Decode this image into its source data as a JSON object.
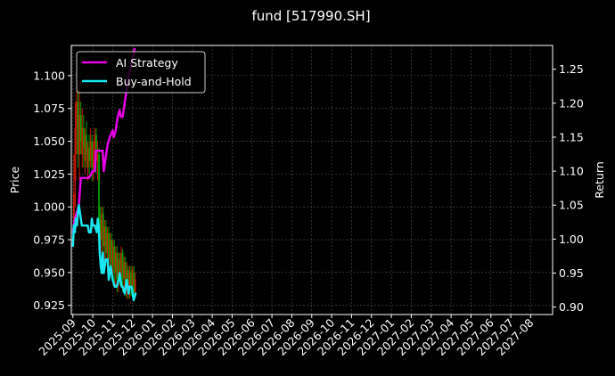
{
  "chart_data": {
    "type": "line",
    "title": "fund [517990.SH]",
    "ylabel_left": "Price",
    "ylabel_right": "Return",
    "xlabel": "",
    "grid": true,
    "legend_position": "top-left",
    "x_ticks": [
      "2025-09",
      "2025-10",
      "2025-11",
      "2025-12",
      "2026-01",
      "2026-02",
      "2026-03",
      "2026-04",
      "2026-05",
      "2026-06",
      "2026-07",
      "2026-08",
      "2026-09",
      "2026-10",
      "2026-11",
      "2026-12",
      "2027-01",
      "2027-02",
      "2027-03",
      "2027-04",
      "2027-05",
      "2027-06",
      "2027-07",
      "2027-08"
    ],
    "x_range_months": [
      -0.08,
      24.1
    ],
    "y_left_ticks": [
      "0.925",
      "0.950",
      "0.975",
      "1.000",
      "1.025",
      "1.050",
      "1.075",
      "1.100"
    ],
    "y_left_range": [
      0.918,
      1.123
    ],
    "y_right_ticks": [
      "0.90",
      "0.95",
      "1.00",
      "1.05",
      "1.10",
      "1.15",
      "1.20",
      "1.25"
    ],
    "y_right_range": [
      0.889,
      1.285
    ],
    "colors": {
      "background": "#000000",
      "ai_strategy": "#e600e6",
      "buy_and_hold": "#19e6f0",
      "candle_up": "#cc1a00",
      "candle_down": "#00a000",
      "grid": "#555555",
      "axis": "#ffffff"
    },
    "series": [
      {
        "name": "AI Strategy",
        "axis": "right",
        "color": "#e600e6",
        "points": [
          [
            0.0,
            1.01
          ],
          [
            0.1,
            1.03
          ],
          [
            0.2,
            1.04
          ],
          [
            0.3,
            1.05
          ],
          [
            0.4,
            1.09
          ],
          [
            0.6,
            1.09
          ],
          [
            0.8,
            1.09
          ],
          [
            1.0,
            1.1
          ],
          [
            1.1,
            1.1
          ],
          [
            1.15,
            1.13
          ],
          [
            1.3,
            1.13
          ],
          [
            1.5,
            1.13
          ],
          [
            1.55,
            1.1
          ],
          [
            1.65,
            1.12
          ],
          [
            1.75,
            1.14
          ],
          [
            1.85,
            1.15
          ],
          [
            2.0,
            1.16
          ],
          [
            2.05,
            1.15
          ],
          [
            2.15,
            1.16
          ],
          [
            2.25,
            1.18
          ],
          [
            2.35,
            1.19
          ],
          [
            2.4,
            1.18
          ],
          [
            2.5,
            1.18
          ],
          [
            2.6,
            1.2
          ],
          [
            2.7,
            1.22
          ],
          [
            2.8,
            1.24
          ],
          [
            2.95,
            1.26
          ],
          [
            3.1,
            1.28
          ]
        ]
      },
      {
        "name": "Buy-and-Hold",
        "axis": "right",
        "color": "#19e6f0",
        "points": [
          [
            0.0,
            0.99
          ],
          [
            0.05,
            1.02
          ],
          [
            0.1,
            1.01
          ],
          [
            0.15,
            1.03
          ],
          [
            0.2,
            1.02
          ],
          [
            0.25,
            1.04
          ],
          [
            0.3,
            1.05
          ],
          [
            0.35,
            1.04
          ],
          [
            0.4,
            1.03
          ],
          [
            0.45,
            1.02
          ],
          [
            0.55,
            1.02
          ],
          [
            0.65,
            1.02
          ],
          [
            0.75,
            1.02
          ],
          [
            0.8,
            1.01
          ],
          [
            0.9,
            1.01
          ],
          [
            0.95,
            1.03
          ],
          [
            1.0,
            1.02
          ],
          [
            1.1,
            1.02
          ],
          [
            1.2,
            1.01
          ],
          [
            1.25,
            1.03
          ],
          [
            1.3,
            1.02
          ],
          [
            1.35,
            0.98
          ],
          [
            1.4,
            0.96
          ],
          [
            1.45,
            0.95
          ],
          [
            1.5,
            0.98
          ],
          [
            1.55,
            0.95
          ],
          [
            1.6,
            0.96
          ],
          [
            1.65,
            0.97
          ],
          [
            1.75,
            0.97
          ],
          [
            1.8,
            0.94
          ],
          [
            1.85,
            0.95
          ],
          [
            1.9,
            0.96
          ],
          [
            1.95,
            0.95
          ],
          [
            2.0,
            0.94
          ],
          [
            2.1,
            0.93
          ],
          [
            2.2,
            0.93
          ],
          [
            2.3,
            0.94
          ],
          [
            2.35,
            0.95
          ],
          [
            2.45,
            0.93
          ],
          [
            2.5,
            0.93
          ],
          [
            2.6,
            0.92
          ],
          [
            2.7,
            0.94
          ],
          [
            2.8,
            0.92
          ],
          [
            2.85,
            0.93
          ],
          [
            2.95,
            0.93
          ],
          [
            3.05,
            0.91
          ],
          [
            3.15,
            0.92
          ]
        ]
      }
    ],
    "candles": {
      "axis": "left",
      "items": [
        {
          "x": 0.05,
          "open": 0.985,
          "close": 1.01,
          "low": 0.975,
          "high": 1.04
        },
        {
          "x": 0.12,
          "open": 1.02,
          "close": 1.06,
          "low": 1.0,
          "high": 1.08
        },
        {
          "x": 0.19,
          "open": 1.06,
          "close": 1.08,
          "low": 1.04,
          "high": 1.095
        },
        {
          "x": 0.26,
          "open": 1.08,
          "close": 1.04,
          "low": 1.03,
          "high": 1.09
        },
        {
          "x": 0.33,
          "open": 1.04,
          "close": 1.07,
          "low": 1.02,
          "high": 1.095
        },
        {
          "x": 0.4,
          "open": 1.07,
          "close": 1.05,
          "low": 1.04,
          "high": 1.08
        },
        {
          "x": 0.47,
          "open": 1.04,
          "close": 1.06,
          "low": 1.03,
          "high": 1.075
        },
        {
          "x": 0.54,
          "open": 1.06,
          "close": 1.045,
          "low": 1.03,
          "high": 1.07
        },
        {
          "x": 0.61,
          "open": 1.035,
          "close": 1.055,
          "low": 1.025,
          "high": 1.06
        },
        {
          "x": 0.68,
          "open": 1.055,
          "close": 1.04,
          "low": 1.03,
          "high": 1.065
        },
        {
          "x": 0.75,
          "open": 1.03,
          "close": 1.045,
          "low": 1.02,
          "high": 1.05
        },
        {
          "x": 0.82,
          "open": 1.045,
          "close": 1.035,
          "low": 1.025,
          "high": 1.055
        },
        {
          "x": 0.89,
          "open": 1.035,
          "close": 1.05,
          "low": 1.03,
          "high": 1.06
        },
        {
          "x": 0.96,
          "open": 1.05,
          "close": 1.03,
          "low": 1.02,
          "high": 1.055
        },
        {
          "x": 1.03,
          "open": 1.03,
          "close": 1.045,
          "low": 1.02,
          "high": 1.05
        },
        {
          "x": 1.1,
          "open": 1.045,
          "close": 1.055,
          "low": 1.035,
          "high": 1.06
        },
        {
          "x": 1.17,
          "open": 1.055,
          "close": 1.035,
          "low": 1.025,
          "high": 1.06
        },
        {
          "x": 1.24,
          "open": 1.035,
          "close": 1.04,
          "low": 1.02,
          "high": 1.05
        },
        {
          "x": 1.31,
          "open": 1.04,
          "close": 0.99,
          "low": 0.98,
          "high": 1.045
        },
        {
          "x": 1.38,
          "open": 0.99,
          "close": 0.975,
          "low": 0.965,
          "high": 1.0
        },
        {
          "x": 1.45,
          "open": 0.975,
          "close": 0.995,
          "low": 0.965,
          "high": 1.0
        },
        {
          "x": 1.52,
          "open": 0.995,
          "close": 0.97,
          "low": 0.96,
          "high": 1.0
        },
        {
          "x": 1.59,
          "open": 0.97,
          "close": 0.985,
          "low": 0.96,
          "high": 0.99
        },
        {
          "x": 1.66,
          "open": 0.985,
          "close": 0.965,
          "low": 0.955,
          "high": 0.99
        },
        {
          "x": 1.73,
          "open": 0.965,
          "close": 0.98,
          "low": 0.95,
          "high": 0.985
        },
        {
          "x": 1.8,
          "open": 0.98,
          "close": 0.96,
          "low": 0.945,
          "high": 0.985
        },
        {
          "x": 1.87,
          "open": 0.96,
          "close": 0.975,
          "low": 0.95,
          "high": 0.98
        },
        {
          "x": 1.94,
          "open": 0.975,
          "close": 0.955,
          "low": 0.945,
          "high": 0.98
        },
        {
          "x": 2.01,
          "open": 0.955,
          "close": 0.97,
          "low": 0.945,
          "high": 0.975
        },
        {
          "x": 2.08,
          "open": 0.97,
          "close": 0.95,
          "low": 0.94,
          "high": 0.975
        },
        {
          "x": 2.15,
          "open": 0.95,
          "close": 0.965,
          "low": 0.94,
          "high": 0.97
        },
        {
          "x": 2.22,
          "open": 0.965,
          "close": 0.945,
          "low": 0.935,
          "high": 0.97
        },
        {
          "x": 2.29,
          "open": 0.945,
          "close": 0.96,
          "low": 0.935,
          "high": 0.965
        },
        {
          "x": 2.36,
          "open": 0.96,
          "close": 0.95,
          "low": 0.94,
          "high": 0.965
        },
        {
          "x": 2.43,
          "open": 0.95,
          "close": 0.965,
          "low": 0.94,
          "high": 0.97
        },
        {
          "x": 2.5,
          "open": 0.965,
          "close": 0.945,
          "low": 0.935,
          "high": 0.968
        },
        {
          "x": 2.57,
          "open": 0.945,
          "close": 0.958,
          "low": 0.935,
          "high": 0.962
        },
        {
          "x": 2.64,
          "open": 0.958,
          "close": 0.94,
          "low": 0.932,
          "high": 0.962
        },
        {
          "x": 2.71,
          "open": 0.94,
          "close": 0.952,
          "low": 0.93,
          "high": 0.958
        },
        {
          "x": 2.78,
          "open": 0.952,
          "close": 0.938,
          "low": 0.93,
          "high": 0.955
        },
        {
          "x": 2.85,
          "open": 0.938,
          "close": 0.95,
          "low": 0.93,
          "high": 0.955
        },
        {
          "x": 2.92,
          "open": 0.95,
          "close": 0.94,
          "low": 0.932,
          "high": 0.955
        },
        {
          "x": 2.99,
          "open": 0.94,
          "close": 0.952,
          "low": 0.935,
          "high": 0.955
        },
        {
          "x": 3.06,
          "open": 0.95,
          "close": 0.935,
          "low": 0.928,
          "high": 0.955
        },
        {
          "x": 3.13,
          "open": 0.935,
          "close": 0.945,
          "low": 0.93,
          "high": 0.95
        }
      ]
    }
  }
}
